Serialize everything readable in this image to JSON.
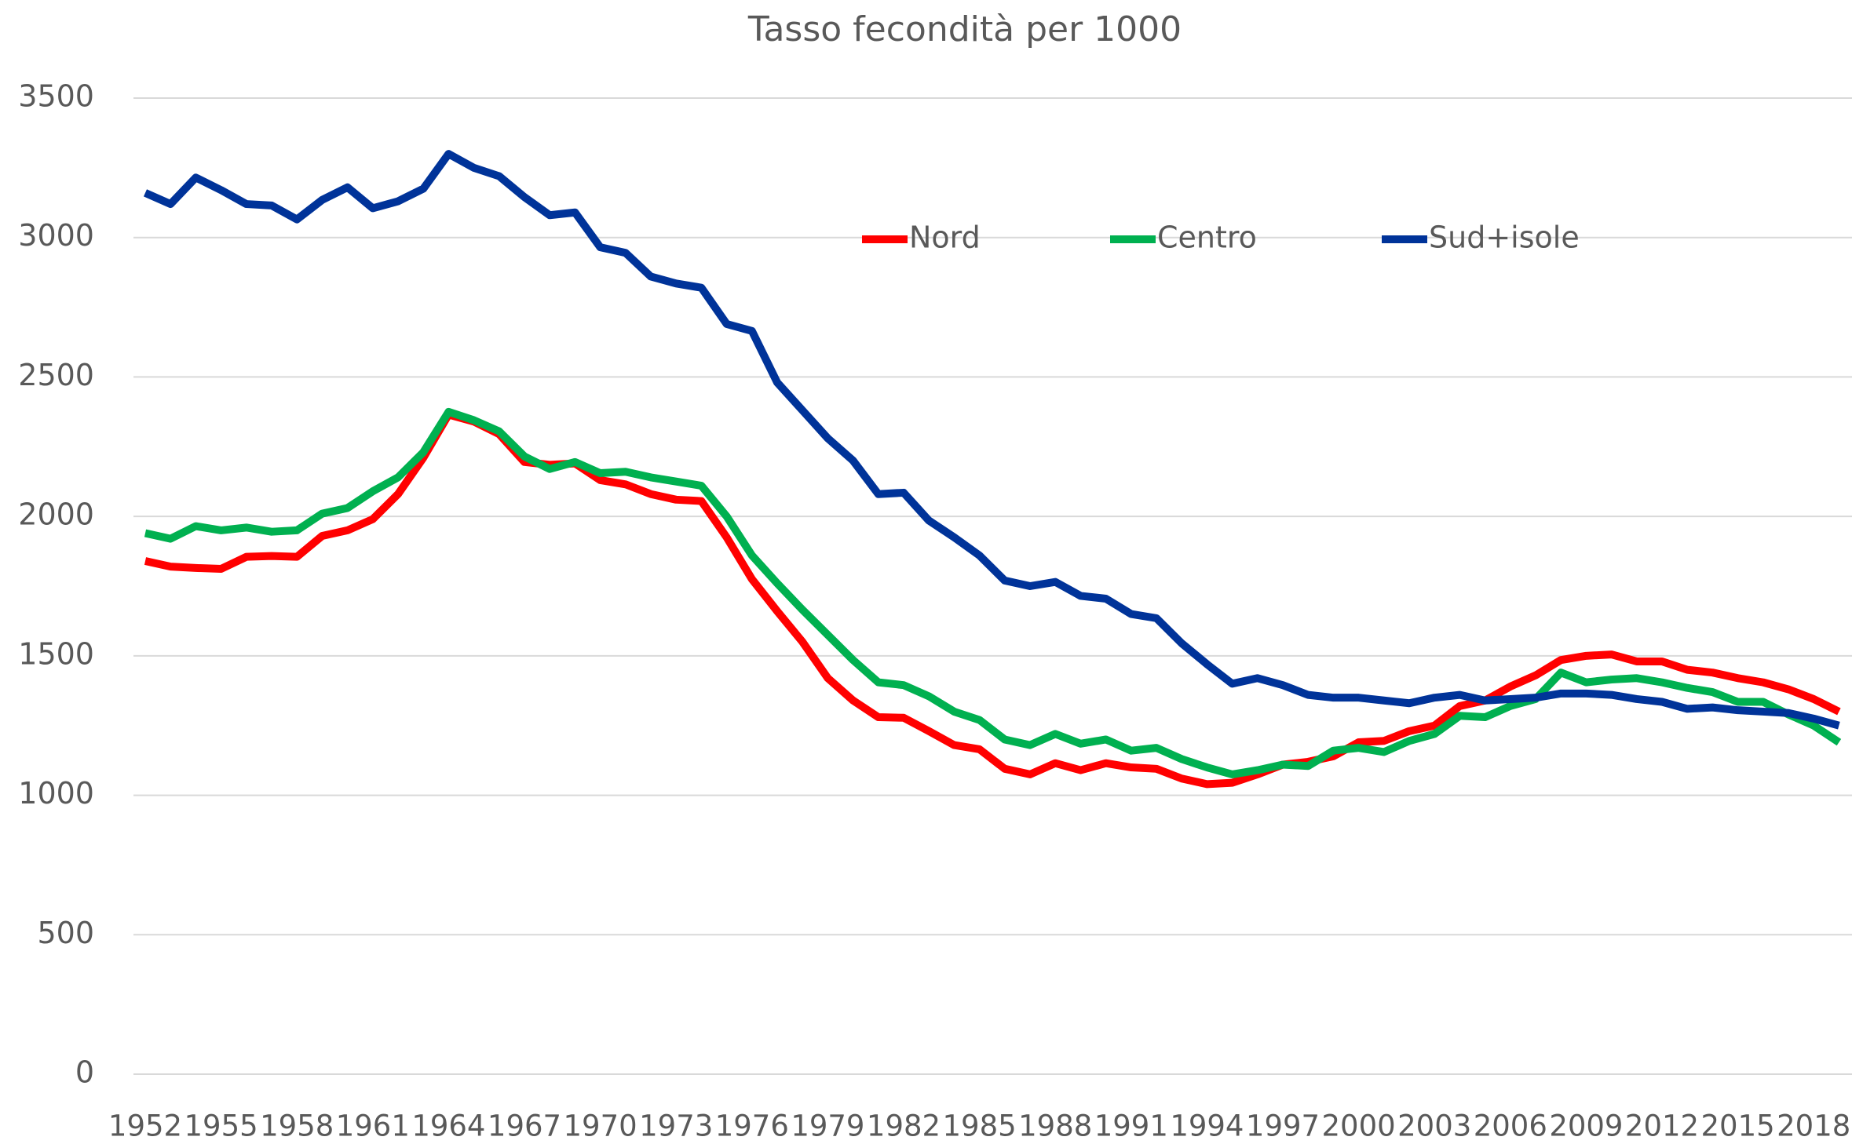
{
  "chart_data": {
    "type": "line",
    "title": "Tasso fecondità per 1000",
    "categories": [
      "1952",
      null,
      null,
      "1955",
      null,
      null,
      "1958",
      null,
      null,
      "1961",
      null,
      null,
      "1964",
      null,
      null,
      "1967",
      null,
      null,
      "1970",
      null,
      null,
      "1973",
      null,
      null,
      "1976",
      null,
      null,
      "1979",
      null,
      null,
      "1982",
      null,
      null,
      "1985",
      null,
      null,
      "1988",
      null,
      null,
      "1991",
      null,
      null,
      "1994",
      null,
      null,
      "1997",
      null,
      null,
      "2000",
      null,
      null,
      "2003",
      null,
      null,
      "2006",
      null,
      null,
      "2009",
      null,
      null,
      "2012",
      null,
      null,
      "2015",
      null,
      null,
      "2018",
      null
    ],
    "series": [
      {
        "name": "Nord",
        "color": "#ff0000",
        "values": [
          1840,
          1820,
          1815,
          1812,
          1855,
          1858,
          1855,
          1930,
          1950,
          1990,
          2080,
          2210,
          2365,
          2340,
          2295,
          2195,
          2185,
          2190,
          2130,
          2115,
          2080,
          2060,
          2055,
          1925,
          1775,
          1660,
          1550,
          1420,
          1340,
          1280,
          1278,
          1230,
          1180,
          1165,
          1095,
          1075,
          1115,
          1090,
          1115,
          1100,
          1095,
          1060,
          1040,
          1045,
          1075,
          1110,
          1120,
          1140,
          1190,
          1195,
          1230,
          1250,
          1320,
          1340,
          1390,
          1430,
          1485,
          1500,
          1505,
          1480,
          1480,
          1450,
          1440,
          1420,
          1405,
          1380,
          1345,
          1300
        ]
      },
      {
        "name": "Centro",
        "color": "#00b050",
        "values": [
          1940,
          1920,
          1965,
          1950,
          1960,
          1945,
          1950,
          2010,
          2030,
          2090,
          2140,
          2230,
          2375,
          2345,
          2305,
          2215,
          2170,
          2195,
          2155,
          2160,
          2140,
          2125,
          2110,
          2000,
          1860,
          1760,
          1665,
          1575,
          1485,
          1405,
          1395,
          1355,
          1300,
          1270,
          1200,
          1180,
          1220,
          1185,
          1200,
          1160,
          1170,
          1130,
          1100,
          1075,
          1090,
          1110,
          1105,
          1160,
          1170,
          1155,
          1195,
          1220,
          1285,
          1280,
          1320,
          1345,
          1440,
          1405,
          1415,
          1420,
          1405,
          1385,
          1370,
          1335,
          1335,
          1290,
          1250,
          1190
        ]
      },
      {
        "name": "Sud+isole",
        "color": "#003399",
        "values": [
          3160,
          3120,
          3215,
          3170,
          3120,
          3115,
          3065,
          3135,
          3180,
          3105,
          3130,
          3175,
          3300,
          3250,
          3220,
          3145,
          3080,
          3090,
          2965,
          2945,
          2860,
          2835,
          2820,
          2690,
          2665,
          2480,
          2380,
          2280,
          2200,
          2080,
          2085,
          1985,
          1925,
          1860,
          1770,
          1750,
          1765,
          1715,
          1705,
          1650,
          1635,
          1545,
          1470,
          1400,
          1420,
          1395,
          1360,
          1350,
          1350,
          1340,
          1330,
          1350,
          1360,
          1340,
          1345,
          1350,
          1365,
          1365,
          1360,
          1345,
          1335,
          1310,
          1315,
          1305,
          1300,
          1295,
          1275,
          1250
        ]
      }
    ],
    "ylim": [
      0,
      3500
    ],
    "yticks": [
      0,
      500,
      1000,
      1500,
      2000,
      2500,
      3000,
      3500
    ],
    "grid": true,
    "legend": "top"
  }
}
